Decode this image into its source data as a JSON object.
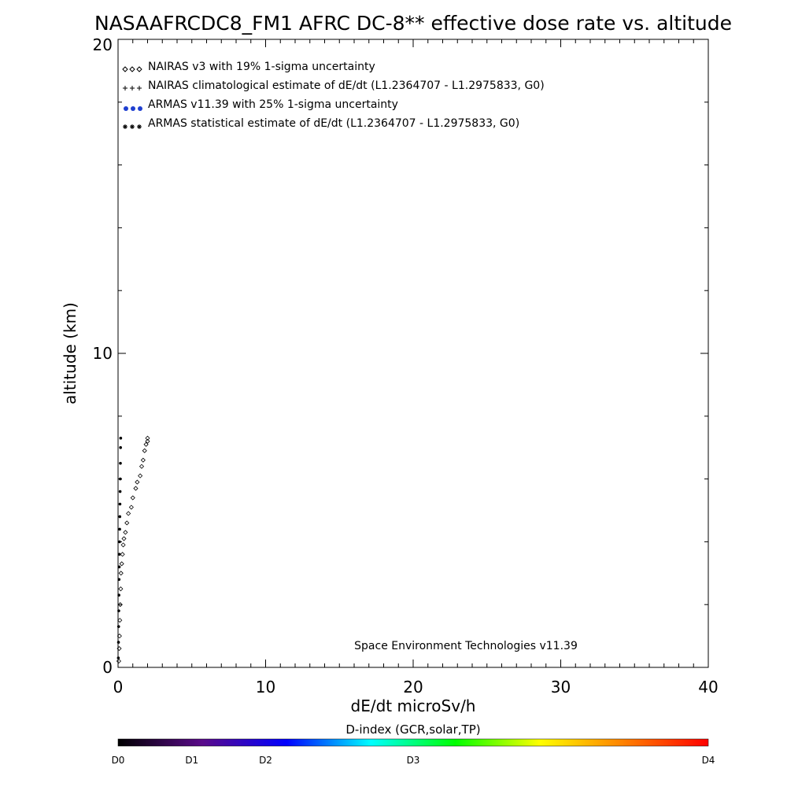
{
  "chart_data": {
    "type": "scatter",
    "title": "NASAAFRCDC8_FM1 AFRC DC-8** effective dose rate vs. altitude",
    "xlabel": "dE/dt microSv/h",
    "ylabel": "altitude (km)",
    "xlim": [
      0,
      40
    ],
    "ylim": [
      0,
      20
    ],
    "x_tick_labels": [
      "0",
      "10",
      "20",
      "30",
      "40"
    ],
    "y_tick_labels": [
      "0",
      "10",
      "20"
    ],
    "x_ticks": [
      0,
      10,
      20,
      30,
      40
    ],
    "y_ticks": [
      0,
      10,
      20
    ],
    "grid": false,
    "legend_position": "top-left",
    "legend": [
      {
        "symbol": "diamond",
        "color": "#000000",
        "label": "NAIRAS v3 with 19% 1-sigma uncertainty"
      },
      {
        "symbol": "plus",
        "color": "#000000",
        "label": "NAIRAS climatological estimate of dE/dt (L1.2364707 - L1.2975833, G0)"
      },
      {
        "symbol": "dot",
        "color": "#1f3fd0",
        "label": "ARMAS v11.39 with 25% 1-sigma uncertainty"
      },
      {
        "symbol": "asterisk",
        "color": "#000000",
        "label": "ARMAS statistical estimate of dE/dt (L1.2364707 - L1.2975833, G0)"
      }
    ],
    "annotation": "Space Environment Technologies v11.39",
    "series": [
      {
        "name": "NAIRAS v3 with 19% 1-sigma uncertainty",
        "symbol": "diamond",
        "x": [
          0.05,
          0.08,
          0.1,
          0.12,
          0.15,
          0.18,
          0.2,
          0.25,
          0.3,
          0.35,
          0.4,
          0.5,
          0.6,
          0.7,
          0.9,
          1.0,
          1.2,
          1.3,
          1.5,
          1.6,
          1.7,
          1.8,
          1.9,
          2.0,
          2.0
        ],
        "y": [
          0.2,
          0.6,
          1.0,
          1.5,
          2.0,
          2.5,
          3.0,
          3.3,
          3.6,
          3.9,
          4.1,
          4.3,
          4.6,
          4.9,
          5.1,
          5.4,
          5.7,
          5.9,
          6.1,
          6.4,
          6.6,
          6.9,
          7.1,
          7.2,
          7.3
        ]
      },
      {
        "name": "ARMAS v11.39 with 25% 1-sigma uncertainty",
        "symbol": "dot",
        "x": [
          0.02,
          0.03,
          0.04,
          0.05,
          0.06,
          0.07,
          0.08,
          0.09,
          0.1,
          0.11,
          0.12,
          0.13,
          0.14,
          0.15,
          0.16,
          0.17,
          0.18
        ],
        "y": [
          0.3,
          0.8,
          1.3,
          1.8,
          2.3,
          2.8,
          3.2,
          3.6,
          4.0,
          4.4,
          4.8,
          5.2,
          5.6,
          6.0,
          6.5,
          7.0,
          7.3
        ]
      }
    ],
    "colorbar": {
      "title": "D-index (GCR,solar,TP)",
      "labels": [
        {
          "text": "D0",
          "value": 0
        },
        {
          "text": "D1",
          "value": 0.125
        },
        {
          "text": "D2",
          "value": 0.25
        },
        {
          "text": "D3",
          "value": 0.5
        },
        {
          "text": "D4",
          "value": 1
        }
      ],
      "colors": [
        "#000000",
        "#5a0a8a",
        "#0000ff",
        "#00ffff",
        "#00ff00",
        "#ffff00",
        "#ff8000",
        "#ff0000"
      ]
    }
  }
}
